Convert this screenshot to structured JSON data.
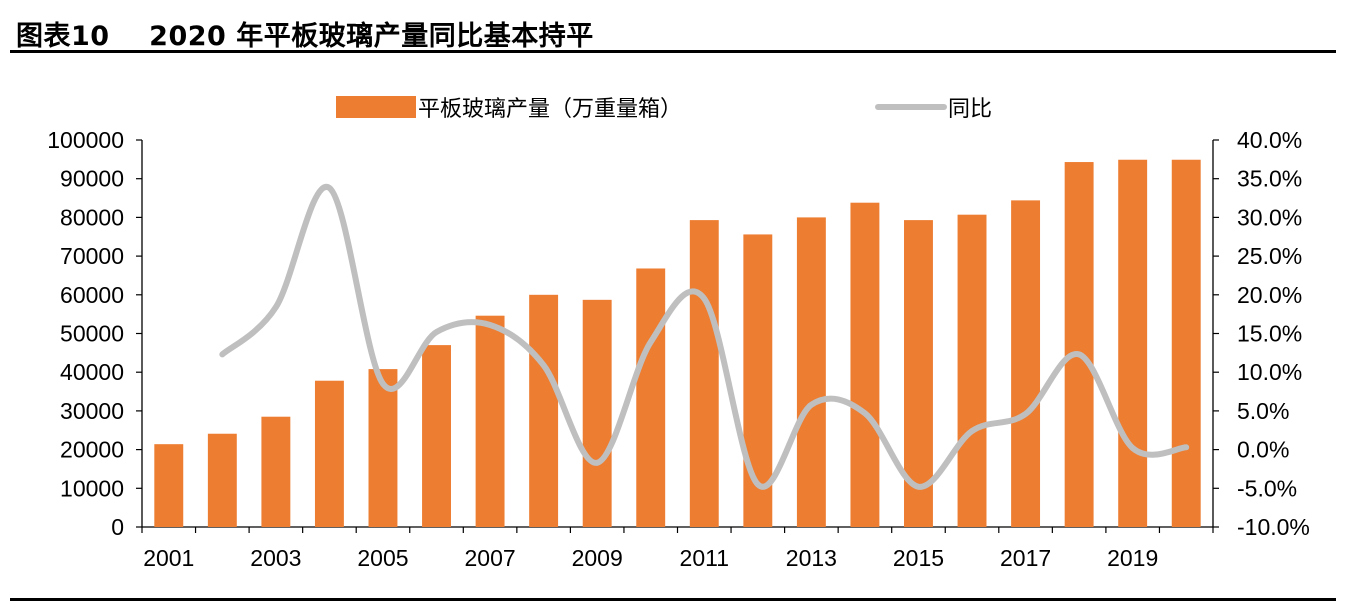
{
  "header": {
    "figure_title": "图表10    2020 年平板玻璃产量同比基本持平"
  },
  "chart_data": {
    "type": "bar",
    "title": "",
    "xlabel": "",
    "ylabel": "",
    "categories": [
      "2001",
      "2002",
      "2003",
      "2004",
      "2005",
      "2006",
      "2007",
      "2008",
      "2009",
      "2010",
      "2011",
      "2012",
      "2013",
      "2014",
      "2015",
      "2016",
      "2017",
      "2018",
      "2019",
      "2020"
    ],
    "x_tick_labels": [
      "2001",
      "2003",
      "2005",
      "2007",
      "2009",
      "2011",
      "2013",
      "2015",
      "2017",
      "2019"
    ],
    "series": [
      {
        "name": "平板玻璃产量（万重量箱）",
        "type": "bar",
        "axis": "left",
        "color": "#ED7D31",
        "values": [
          21400,
          24100,
          28500,
          37800,
          40800,
          47000,
          54600,
          60000,
          58700,
          66800,
          79300,
          75600,
          80000,
          83800,
          79300,
          80700,
          84400,
          94300,
          94900,
          94900
        ]
      },
      {
        "name": "同比",
        "type": "line",
        "axis": "right",
        "color": "#BFBFBF",
        "values": [
          null,
          12.3,
          18.4,
          33.8,
          8.5,
          15.2,
          16.1,
          10.9,
          -1.7,
          13.9,
          19.5,
          -4.5,
          5.8,
          4.7,
          -4.8,
          2.4,
          4.6,
          12.3,
          0.2,
          0.3
        ]
      }
    ],
    "y_left": {
      "min": 0,
      "max": 100000,
      "step": 10000,
      "ticks": [
        "0",
        "10000",
        "20000",
        "30000",
        "40000",
        "50000",
        "60000",
        "70000",
        "80000",
        "90000",
        "100000"
      ]
    },
    "y_right": {
      "min": -10,
      "max": 40,
      "step": 5,
      "ticks": [
        "-10.0%",
        "-5.0%",
        "0.0%",
        "5.0%",
        "10.0%",
        "15.0%",
        "20.0%",
        "25.0%",
        "30.0%",
        "35.0%",
        "40.0%"
      ]
    },
    "legend": {
      "placement": "top-center",
      "bar_label": "平板玻璃产量（万重量箱）",
      "line_label": "同比"
    },
    "grid": false
  }
}
